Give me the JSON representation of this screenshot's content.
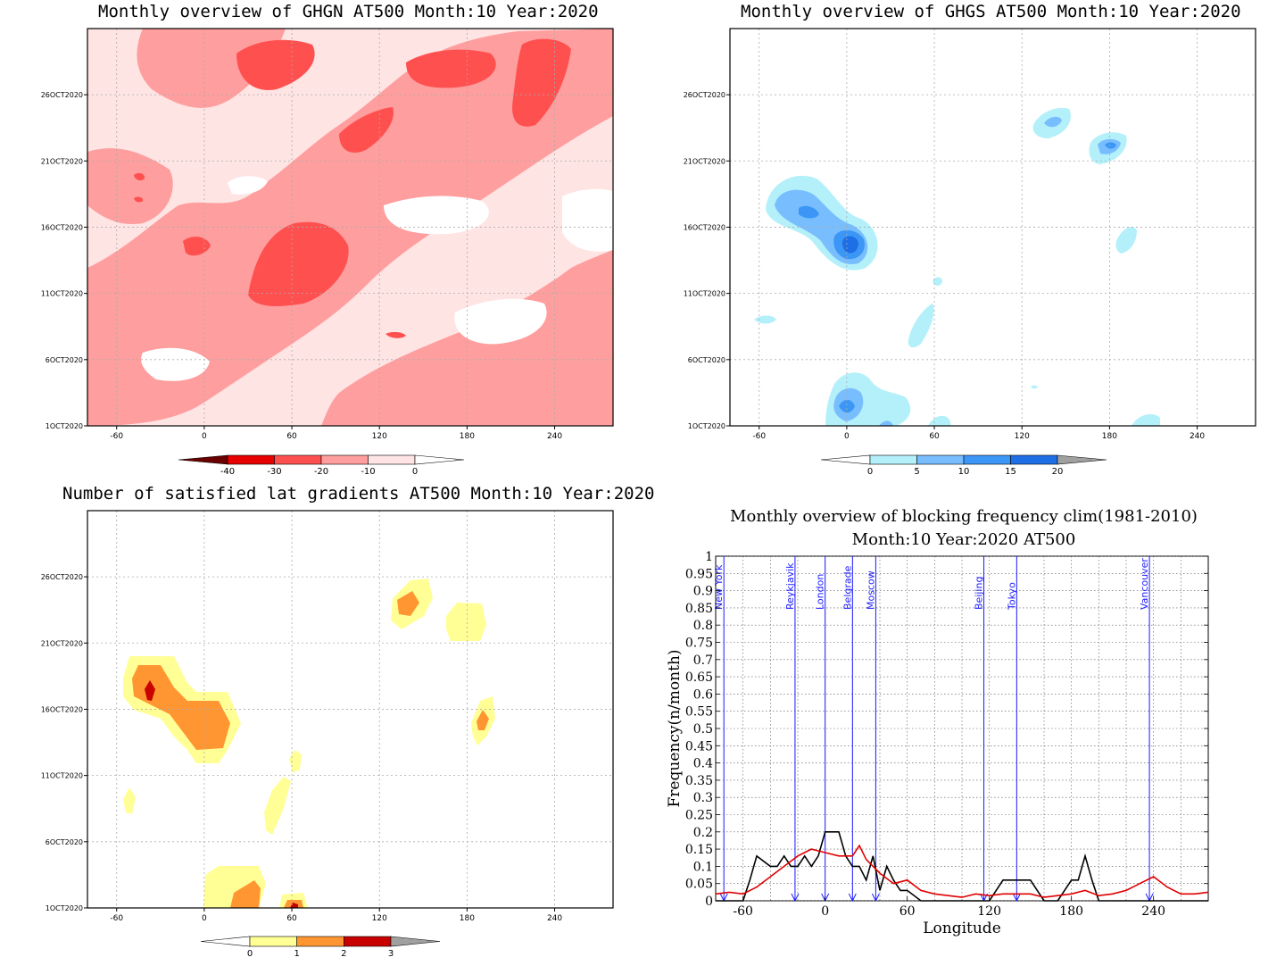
{
  "panels": {
    "ghgn": {
      "title": "Monthly overview of GHGN AT500 Month:10 Year:2020",
      "x_ticks": [
        "-60",
        "0",
        "60",
        "120",
        "180",
        "240"
      ],
      "y_ticks": [
        "26OCT2020",
        "21OCT2020",
        "16OCT2020",
        "11OCT2020",
        "6OCT2020",
        "1OCT2020"
      ],
      "colorbar_labels": [
        "-40",
        "-30",
        "-20",
        "-10",
        "0"
      ],
      "colorbar_colors": [
        "#6a0000",
        "#e60000",
        "#ff5050",
        "#ff9e9e",
        "#ffe4e4",
        "#ffffff"
      ]
    },
    "ghgs": {
      "title": "Monthly overview of GHGS AT500 Month:10 Year:2020",
      "x_ticks": [
        "-60",
        "0",
        "60",
        "120",
        "180",
        "240"
      ],
      "y_ticks": [
        "26OCT2020",
        "21OCT2020",
        "16OCT2020",
        "11OCT2020",
        "6OCT2020",
        "1OCT2020"
      ],
      "colorbar_labels": [
        "0",
        "5",
        "10",
        "15",
        "20"
      ],
      "colorbar_colors": [
        "#ffffff",
        "#b4f0fa",
        "#78beff",
        "#3c96f5",
        "#1e6ee6",
        "#a0a0a0"
      ]
    },
    "gradients": {
      "title": "Number of satisfied lat gradients AT500 Month:10 Year:2020",
      "x_ticks": [
        "-60",
        "0",
        "60",
        "120",
        "180",
        "240"
      ],
      "y_ticks": [
        "26OCT2020",
        "21OCT2020",
        "16OCT2020",
        "11OCT2020",
        "6OCT2020",
        "1OCT2020"
      ],
      "colorbar_labels": [
        "0",
        "1",
        "2",
        "3"
      ],
      "colorbar_colors": [
        "#ffffff",
        "#ffff96",
        "#ff9632",
        "#c80000",
        "#a0a0a0"
      ]
    }
  },
  "chart_data": [
    {
      "type": "heatmap",
      "title": "Monthly overview of GHGN AT500 Month:10 Year:2020",
      "x_ticks": [
        -60,
        0,
        60,
        120,
        180,
        240
      ],
      "xlim": [
        -80,
        280
      ],
      "y_ticks": [
        "1OCT2020",
        "6OCT2020",
        "11OCT2020",
        "16OCT2020",
        "21OCT2020",
        "26OCT2020"
      ],
      "levels": [
        -40,
        -30,
        -20,
        -10,
        0
      ]
    },
    {
      "type": "heatmap",
      "title": "Monthly overview of GHGS AT500 Month:10 Year:2020",
      "x_ticks": [
        -60,
        0,
        60,
        120,
        180,
        240
      ],
      "xlim": [
        -80,
        280
      ],
      "y_ticks": [
        "1OCT2020",
        "6OCT2020",
        "11OCT2020",
        "16OCT2020",
        "21OCT2020",
        "26OCT2020"
      ],
      "levels": [
        0,
        5,
        10,
        15,
        20
      ]
    },
    {
      "type": "heatmap",
      "title": "Number of satisfied lat gradients AT500 Month:10 Year:2020",
      "x_ticks": [
        -60,
        0,
        60,
        120,
        180,
        240
      ],
      "xlim": [
        -80,
        280
      ],
      "y_ticks": [
        "1OCT2020",
        "6OCT2020",
        "11OCT2020",
        "16OCT2020",
        "21OCT2020",
        "26OCT2020"
      ],
      "levels": [
        0,
        1,
        2,
        3
      ]
    },
    {
      "type": "line",
      "title": "Monthly overview of blocking frequency clim(1981-2010)",
      "subtitle": "Month:10 Year:2020  AT500",
      "xlabel": "Longitude",
      "ylabel": "Frequency(n/month)",
      "xlim": [
        -80,
        280
      ],
      "ylim": [
        0,
        1
      ],
      "x_ticks": [
        -60,
        0,
        60,
        120,
        180,
        240
      ],
      "y_ticks": [
        "0",
        "0.05",
        "0.1",
        "0.15",
        "0.2",
        "0.25",
        "0.3",
        "0.35",
        "0.4",
        "0.45",
        "0.5",
        "0.55",
        "0.6",
        "0.65",
        "0.7",
        "0.75",
        "0.8",
        "0.85",
        "0.9",
        "0.95",
        "1"
      ],
      "grid": true,
      "cities": [
        {
          "name": "New York",
          "lon": -74
        },
        {
          "name": "Reykjavik",
          "lon": -22
        },
        {
          "name": "London",
          "lon": 0
        },
        {
          "name": "Belgrade",
          "lon": 20
        },
        {
          "name": "Moscow",
          "lon": 37
        },
        {
          "name": "Beijing",
          "lon": 116
        },
        {
          "name": "Tokyo",
          "lon": 140
        },
        {
          "name": "Vancouver",
          "lon": 237
        }
      ],
      "series": [
        {
          "color": "#000000",
          "x": [
            -80,
            -60,
            -55,
            -50,
            -40,
            -35,
            -30,
            -25,
            -20,
            -15,
            -10,
            -5,
            0,
            5,
            10,
            15,
            20,
            25,
            30,
            35,
            40,
            45,
            50,
            55,
            60,
            70,
            80,
            90,
            100,
            110,
            120,
            130,
            140,
            150,
            160,
            170,
            180,
            185,
            190,
            195,
            200,
            210,
            220,
            230,
            240,
            250,
            260,
            270,
            280
          ],
          "y": [
            0,
            0,
            0.06,
            0.13,
            0.1,
            0.1,
            0.13,
            0.1,
            0.1,
            0.13,
            0.1,
            0.13,
            0.2,
            0.2,
            0.2,
            0.13,
            0.1,
            0.1,
            0.06,
            0.13,
            0.03,
            0.1,
            0.06,
            0.03,
            0.03,
            0,
            0,
            0,
            0,
            0,
            0,
            0.06,
            0.06,
            0.06,
            0,
            0,
            0.06,
            0.06,
            0.13,
            0.06,
            0,
            0,
            0,
            0,
            0,
            0,
            0,
            0,
            0
          ]
        },
        {
          "color": "#e00000",
          "x": [
            -80,
            -70,
            -60,
            -50,
            -40,
            -30,
            -20,
            -10,
            0,
            10,
            20,
            25,
            30,
            40,
            50,
            60,
            70,
            80,
            90,
            100,
            110,
            120,
            130,
            140,
            150,
            160,
            170,
            180,
            190,
            200,
            210,
            220,
            230,
            240,
            250,
            260,
            270,
            280
          ],
          "y": [
            0.02,
            0.025,
            0.02,
            0.04,
            0.07,
            0.1,
            0.13,
            0.15,
            0.14,
            0.13,
            0.13,
            0.16,
            0.12,
            0.08,
            0.05,
            0.06,
            0.03,
            0.02,
            0.015,
            0.01,
            0.02,
            0.015,
            0.02,
            0.02,
            0.02,
            0.01,
            0.015,
            0.02,
            0.03,
            0.015,
            0.02,
            0.03,
            0.05,
            0.07,
            0.04,
            0.02,
            0.02,
            0.025
          ]
        }
      ]
    }
  ]
}
